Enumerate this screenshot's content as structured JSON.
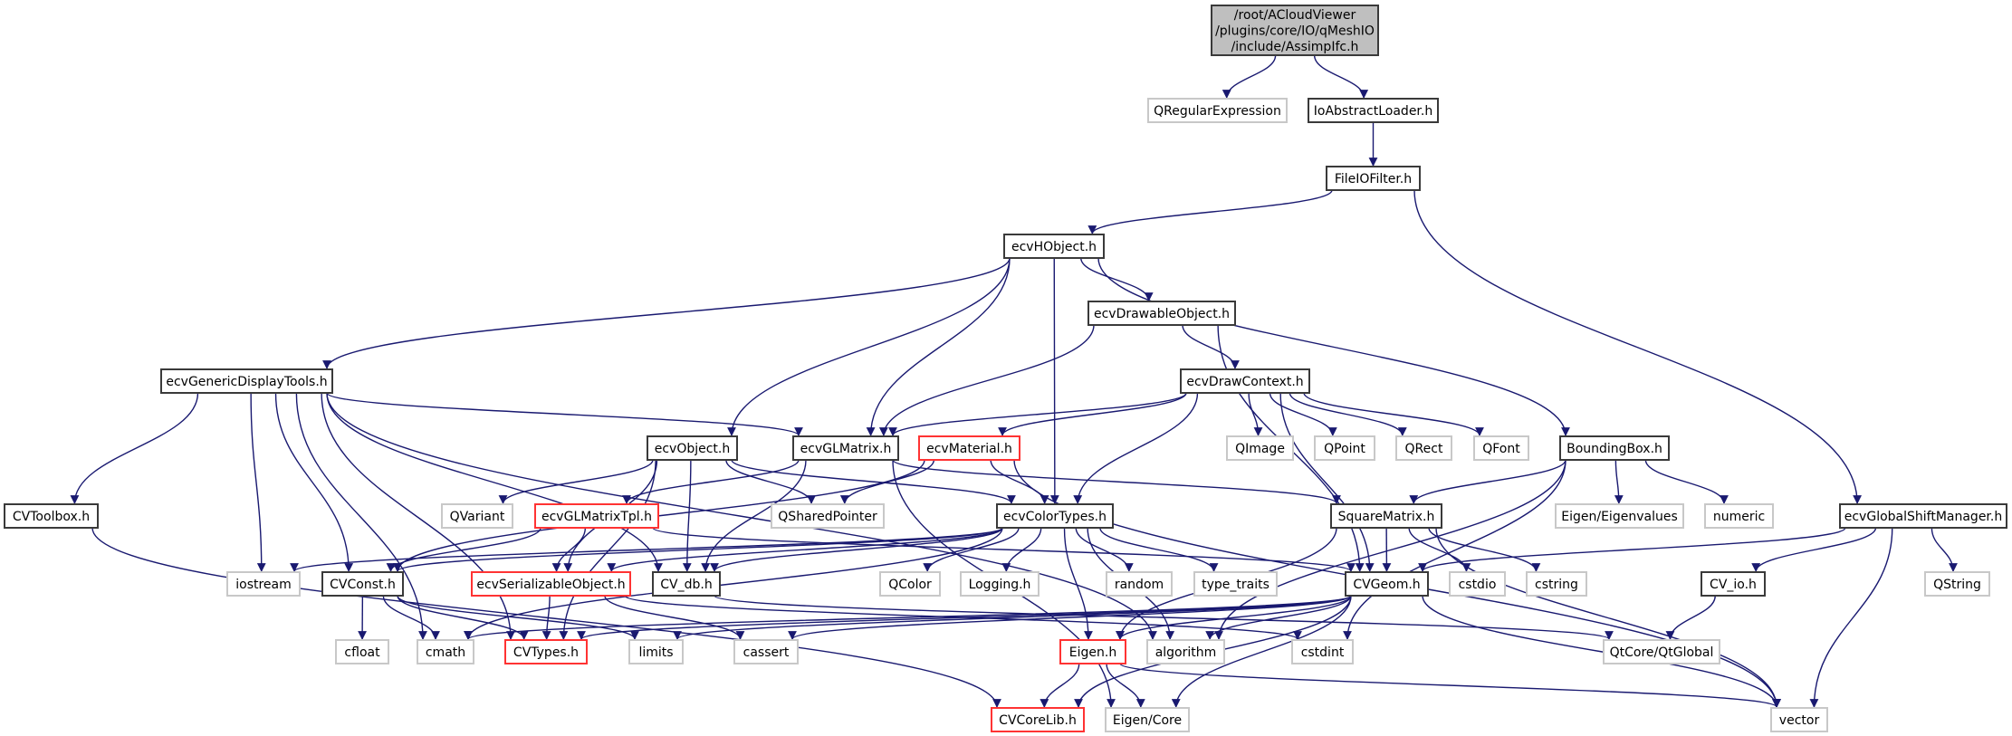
{
  "colors": {
    "edge": "#191970",
    "root_fill": "#bfbfbf",
    "documented_border": "#3a3a3a",
    "truncated_border": "#ff3333",
    "external_border": "#c8c8c8"
  },
  "root": {
    "id": "root",
    "lines": [
      "/root/ACloudViewer",
      "/plugins/core/IO/qMeshIO",
      "/include/AssimpIfc.h"
    ]
  },
  "nodes": [
    {
      "id": "QRegularExpression",
      "label": "QRegularExpression",
      "kind": "gray"
    },
    {
      "id": "IoAbstractLoader",
      "label": "IoAbstractLoader.h",
      "kind": "black"
    },
    {
      "id": "FileIOFilter",
      "label": "FileIOFilter.h",
      "kind": "black"
    },
    {
      "id": "ecvHObject",
      "label": "ecvHObject.h",
      "kind": "black"
    },
    {
      "id": "ecvDrawableObject",
      "label": "ecvDrawableObject.h",
      "kind": "black"
    },
    {
      "id": "ecvGenericDisplayTools",
      "label": "ecvGenericDisplayTools.h",
      "kind": "black"
    },
    {
      "id": "ecvDrawContext",
      "label": "ecvDrawContext.h",
      "kind": "black"
    },
    {
      "id": "ecvObject",
      "label": "ecvObject.h",
      "kind": "black"
    },
    {
      "id": "ecvGLMatrix",
      "label": "ecvGLMatrix.h",
      "kind": "black"
    },
    {
      "id": "ecvMaterial",
      "label": "ecvMaterial.h",
      "kind": "red"
    },
    {
      "id": "QImage",
      "label": "QImage",
      "kind": "gray"
    },
    {
      "id": "QPoint",
      "label": "QPoint",
      "kind": "gray"
    },
    {
      "id": "QRect",
      "label": "QRect",
      "kind": "gray"
    },
    {
      "id": "QFont",
      "label": "QFont",
      "kind": "gray"
    },
    {
      "id": "BoundingBox",
      "label": "BoundingBox.h",
      "kind": "black"
    },
    {
      "id": "CVToolbox",
      "label": "CVToolbox.h",
      "kind": "black"
    },
    {
      "id": "QVariant",
      "label": "QVariant",
      "kind": "gray"
    },
    {
      "id": "ecvGLMatrixTpl",
      "label": "ecvGLMatrixTpl.h",
      "kind": "red"
    },
    {
      "id": "QSharedPointer",
      "label": "QSharedPointer",
      "kind": "gray"
    },
    {
      "id": "ecvColorTypes",
      "label": "ecvColorTypes.h",
      "kind": "black"
    },
    {
      "id": "SquareMatrix",
      "label": "SquareMatrix.h",
      "kind": "black"
    },
    {
      "id": "EigenEigenvalues",
      "label": "Eigen/Eigenvalues",
      "kind": "gray"
    },
    {
      "id": "numeric",
      "label": "numeric",
      "kind": "gray"
    },
    {
      "id": "ecvGlobalShiftManager",
      "label": "ecvGlobalShiftManager.h",
      "kind": "black"
    },
    {
      "id": "iostream",
      "label": "iostream",
      "kind": "gray"
    },
    {
      "id": "CVConst",
      "label": "CVConst.h",
      "kind": "black"
    },
    {
      "id": "ecvSerializableObject",
      "label": "ecvSerializableObject.h",
      "kind": "red"
    },
    {
      "id": "CV_db",
      "label": "CV_db.h",
      "kind": "black"
    },
    {
      "id": "QColor",
      "label": "QColor",
      "kind": "gray"
    },
    {
      "id": "Logging",
      "label": "Logging.h",
      "kind": "gray"
    },
    {
      "id": "random",
      "label": "random",
      "kind": "gray"
    },
    {
      "id": "type_traits",
      "label": "type_traits",
      "kind": "gray"
    },
    {
      "id": "CVGeom",
      "label": "CVGeom.h",
      "kind": "black"
    },
    {
      "id": "cstdio",
      "label": "cstdio",
      "kind": "gray"
    },
    {
      "id": "cstring",
      "label": "cstring",
      "kind": "gray"
    },
    {
      "id": "CV_io",
      "label": "CV_io.h",
      "kind": "black"
    },
    {
      "id": "QString",
      "label": "QString",
      "kind": "gray"
    },
    {
      "id": "cfloat",
      "label": "cfloat",
      "kind": "gray"
    },
    {
      "id": "cmath",
      "label": "cmath",
      "kind": "gray"
    },
    {
      "id": "CVTypes",
      "label": "CVTypes.h",
      "kind": "red"
    },
    {
      "id": "limits",
      "label": "limits",
      "kind": "gray"
    },
    {
      "id": "cassert",
      "label": "cassert",
      "kind": "gray"
    },
    {
      "id": "Eigen",
      "label": "Eigen.h",
      "kind": "red"
    },
    {
      "id": "algorithm",
      "label": "algorithm",
      "kind": "gray"
    },
    {
      "id": "cstdint",
      "label": "cstdint",
      "kind": "gray"
    },
    {
      "id": "QtGlobal",
      "label": "QtCore/QtGlobal",
      "kind": "gray"
    },
    {
      "id": "CVCoreLib",
      "label": "CVCoreLib.h",
      "kind": "red"
    },
    {
      "id": "EigenCore",
      "label": "Eigen/Core",
      "kind": "gray"
    },
    {
      "id": "vector",
      "label": "vector",
      "kind": "gray"
    }
  ],
  "edges": [
    [
      "root",
      "QRegularExpression"
    ],
    [
      "root",
      "IoAbstractLoader"
    ],
    [
      "IoAbstractLoader",
      "FileIOFilter"
    ],
    [
      "FileIOFilter",
      "ecvHObject"
    ],
    [
      "FileIOFilter",
      "ecvGlobalShiftManager"
    ],
    [
      "ecvHObject",
      "ecvGenericDisplayTools"
    ],
    [
      "ecvHObject",
      "ecvObject"
    ],
    [
      "ecvHObject",
      "ecvGLMatrix"
    ],
    [
      "ecvHObject",
      "ecvColorTypes"
    ],
    [
      "ecvHObject",
      "ecvDrawableObject"
    ],
    [
      "ecvHObject",
      "BoundingBox"
    ],
    [
      "ecvDrawableObject",
      "ecvGLMatrix"
    ],
    [
      "ecvDrawableObject",
      "ecvDrawContext"
    ],
    [
      "ecvDrawableObject",
      "CVGeom"
    ],
    [
      "ecvDrawContext",
      "ecvGLMatrix"
    ],
    [
      "ecvDrawContext",
      "ecvMaterial"
    ],
    [
      "ecvDrawContext",
      "ecvColorTypes"
    ],
    [
      "ecvDrawContext",
      "QImage"
    ],
    [
      "ecvDrawContext",
      "QPoint"
    ],
    [
      "ecvDrawContext",
      "QRect"
    ],
    [
      "ecvDrawContext",
      "QFont"
    ],
    [
      "ecvDrawContext",
      "CVGeom"
    ],
    [
      "ecvGenericDisplayTools",
      "CVToolbox"
    ],
    [
      "ecvGenericDisplayTools",
      "iostream"
    ],
    [
      "ecvGenericDisplayTools",
      "CVConst"
    ],
    [
      "ecvGenericDisplayTools",
      "cmath"
    ],
    [
      "ecvGenericDisplayTools",
      "CV_db"
    ],
    [
      "ecvGenericDisplayTools",
      "ecvGLMatrix"
    ],
    [
      "ecvGenericDisplayTools",
      "CVTypes"
    ],
    [
      "ecvGenericDisplayTools",
      "algorithm"
    ],
    [
      "ecvObject",
      "QVariant"
    ],
    [
      "ecvObject",
      "QSharedPointer"
    ],
    [
      "ecvObject",
      "ecvColorTypes"
    ],
    [
      "ecvObject",
      "CV_db"
    ],
    [
      "ecvObject",
      "ecvSerializableObject"
    ],
    [
      "ecvObject",
      "CVTypes"
    ],
    [
      "ecvGLMatrix",
      "ecvGLMatrixTpl"
    ],
    [
      "ecvGLMatrix",
      "CV_db"
    ],
    [
      "ecvGLMatrix",
      "SquareMatrix"
    ],
    [
      "ecvGLMatrix",
      "EigenCore"
    ],
    [
      "ecvMaterial",
      "QSharedPointer"
    ],
    [
      "ecvMaterial",
      "ecvColorTypes"
    ],
    [
      "ecvMaterial",
      "vector"
    ],
    [
      "ecvMaterial",
      "CVConst"
    ],
    [
      "ecvGLMatrixTpl",
      "CVConst"
    ],
    [
      "ecvGLMatrixTpl",
      "ecvSerializableObject"
    ],
    [
      "ecvGLMatrixTpl",
      "CVGeom"
    ],
    [
      "ecvColorTypes",
      "QColor"
    ],
    [
      "ecvColorTypes",
      "Logging"
    ],
    [
      "ecvColorTypes",
      "random"
    ],
    [
      "ecvColorTypes",
      "type_traits"
    ],
    [
      "ecvColorTypes",
      "algorithm"
    ],
    [
      "ecvColorTypes",
      "CV_db"
    ],
    [
      "ecvColorTypes",
      "CVConst"
    ],
    [
      "ecvColorTypes",
      "ecvSerializableObject"
    ],
    [
      "ecvColorTypes",
      "iostream"
    ],
    [
      "ecvColorTypes",
      "cmath"
    ],
    [
      "ecvColorTypes",
      "Eigen"
    ],
    [
      "BoundingBox",
      "SquareMatrix"
    ],
    [
      "BoundingBox",
      "EigenEigenvalues"
    ],
    [
      "BoundingBox",
      "numeric"
    ],
    [
      "BoundingBox",
      "cstdint"
    ],
    [
      "BoundingBox",
      "algorithm"
    ],
    [
      "SquareMatrix",
      "CVGeom"
    ],
    [
      "SquareMatrix",
      "cstdio"
    ],
    [
      "SquareMatrix",
      "cstring"
    ],
    [
      "SquareMatrix",
      "vector"
    ],
    [
      "SquareMatrix",
      "Eigen"
    ],
    [
      "ecvGlobalShiftManager",
      "CVGeom"
    ],
    [
      "ecvGlobalShiftManager",
      "CV_io"
    ],
    [
      "ecvGlobalShiftManager",
      "QString"
    ],
    [
      "ecvGlobalShiftManager",
      "vector"
    ],
    [
      "CVConst",
      "cfloat"
    ],
    [
      "CVConst",
      "cmath"
    ],
    [
      "CVConst",
      "CVTypes"
    ],
    [
      "CVConst",
      "limits"
    ],
    [
      "ecvSerializableObject",
      "CVTypes"
    ],
    [
      "ecvSerializableObject",
      "cassert"
    ],
    [
      "ecvSerializableObject",
      "cstdint"
    ],
    [
      "CV_db",
      "QtGlobal"
    ],
    [
      "CVGeom",
      "CVTypes"
    ],
    [
      "CVGeom",
      "cmath"
    ],
    [
      "CVGeom",
      "limits"
    ],
    [
      "CVGeom",
      "cassert"
    ],
    [
      "CVGeom",
      "Eigen"
    ],
    [
      "CVGeom",
      "algorithm"
    ],
    [
      "CVGeom",
      "CVCoreLib"
    ],
    [
      "CVGeom",
      "EigenCore"
    ],
    [
      "CVGeom",
      "vector"
    ],
    [
      "CV_io",
      "QtGlobal"
    ],
    [
      "Eigen",
      "CVCoreLib"
    ],
    [
      "Eigen",
      "EigenCore"
    ],
    [
      "Eigen",
      "vector"
    ],
    [
      "CVToolbox",
      "CVCoreLib"
    ]
  ]
}
